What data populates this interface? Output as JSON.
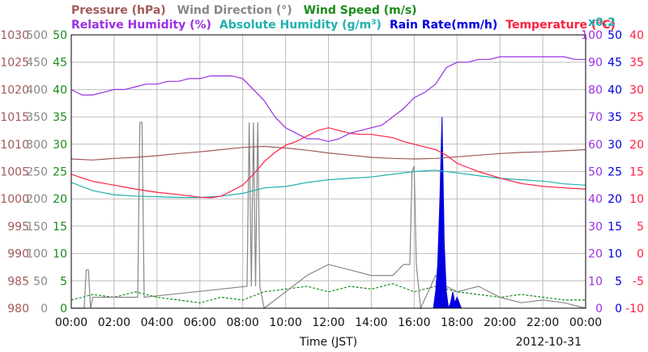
{
  "chart_data": {
    "type": "line",
    "xlabel": "Time (JST)",
    "date": "2012-10-31",
    "x_ticks": [
      "00:00",
      "02:00",
      "04:00",
      "06:00",
      "08:00",
      "10:00",
      "12:00",
      "14:00",
      "16:00",
      "18:00",
      "20:00",
      "22:00",
      "00:00"
    ],
    "x_unit": "hours",
    "xlim": [
      0,
      24
    ],
    "grid": true,
    "legend": {
      "row1": [
        {
          "label": "Pressure (hPa)",
          "color": "#a05a5a"
        },
        {
          "label": "Wind Direction (°)",
          "color": "#888888"
        },
        {
          "label": "Wind Speed (m/s)",
          "color": "#1a8a1a"
        }
      ],
      "row2": [
        {
          "label": "Relative Humidity (%)",
          "color": "#9a30e0"
        },
        {
          "label": "Absolute Humidity (g/m",
          "color": "#20b0b0",
          "superscript": "3",
          "suffix": ")"
        },
        {
          "label": "Rain Rate(mm/h)",
          "color": "#0000e0"
        },
        {
          "label": "Temperature (°C)",
          "color": "#ff2040"
        }
      ],
      "abs_humidity_scale": "x0.2"
    },
    "axes": {
      "pressure": {
        "color": "#a05a5a",
        "range": [
          980,
          1030
        ],
        "ticks": [
          "1030",
          "1025",
          "1020",
          "1015",
          "1010",
          "1005",
          "1000",
          "995",
          "990",
          "985",
          "980"
        ]
      },
      "wind_direction": {
        "color": "#888888",
        "range": [
          0,
          500
        ],
        "ticks": [
          "500",
          "450",
          "400",
          "350",
          "300",
          "250",
          "200",
          "150",
          "100",
          "50",
          "0"
        ]
      },
      "wind_speed": {
        "color": "#1a8a1a",
        "range": [
          0,
          50
        ],
        "ticks": [
          "50",
          "45",
          "40",
          "35",
          "30",
          "25",
          "20",
          "15",
          "10",
          "5",
          "0"
        ]
      },
      "humidity": {
        "color": "#9a30e0",
        "range": [
          0,
          100
        ],
        "ticks": [
          "100",
          "90",
          "80",
          "70",
          "60",
          "50",
          "40",
          "30",
          "20",
          "10",
          "0"
        ]
      },
      "rain_rate": {
        "color": "#0000e0",
        "range": [
          0,
          50
        ],
        "ticks": [
          "50",
          "45",
          "40",
          "35",
          "30",
          "25",
          "20",
          "15",
          "10",
          "5",
          "0"
        ]
      },
      "temperature": {
        "color": "#ff2040",
        "range": [
          -10,
          40
        ],
        "ticks": [
          "40",
          "35",
          "30",
          "25",
          "20",
          "15",
          "10",
          "5",
          "0",
          "-5",
          "-10"
        ]
      }
    },
    "series": [
      {
        "name": "Relative Humidity (%)",
        "axis": "humidity",
        "color": "#9a30e0",
        "x": [
          0,
          0.5,
          1,
          1.5,
          2,
          2.5,
          3,
          3.5,
          4,
          4.5,
          5,
          5.5,
          6,
          6.5,
          7,
          7.5,
          8,
          8.5,
          9,
          9.5,
          10,
          10.5,
          11,
          11.5,
          12,
          12.5,
          13,
          13.5,
          14,
          14.5,
          15,
          15.5,
          16,
          16.5,
          17,
          17.5,
          18,
          18.5,
          19,
          19.5,
          20,
          20.5,
          21,
          21.5,
          22,
          22.5,
          23,
          23.5,
          24
        ],
        "values": [
          80,
          78,
          78,
          79,
          80,
          80,
          81,
          82,
          82,
          83,
          83,
          84,
          84,
          85,
          85,
          85,
          84,
          80,
          76,
          70,
          66,
          64,
          62,
          62,
          61,
          62,
          64,
          65,
          66,
          67,
          70,
          73,
          77,
          79,
          82,
          88,
          90,
          90,
          91,
          91,
          92,
          92,
          92,
          92,
          92,
          92,
          92,
          91,
          91
        ]
      },
      {
        "name": "Pressure (hPa)",
        "axis": "pressure",
        "color": "#a05a5a",
        "x": [
          0,
          1,
          2,
          3,
          4,
          5,
          6,
          7,
          8,
          9,
          10,
          11,
          12,
          13,
          14,
          15,
          16,
          17,
          18,
          19,
          20,
          21,
          22,
          23,
          24
        ],
        "values": [
          1007.3,
          1007.1,
          1007.4,
          1007.6,
          1007.9,
          1008.3,
          1008.6,
          1009.0,
          1009.4,
          1009.6,
          1009.3,
          1008.9,
          1008.4,
          1008.0,
          1007.6,
          1007.4,
          1007.3,
          1007.4,
          1007.7,
          1008.0,
          1008.3,
          1008.5,
          1008.6,
          1008.8,
          1009.0
        ]
      },
      {
        "name": "Temperature (°C)",
        "axis": "temperature",
        "color": "#ff2040",
        "x": [
          0,
          1,
          2,
          3,
          4,
          5,
          6,
          6.5,
          7,
          7.5,
          8,
          8.5,
          9,
          9.5,
          10,
          10.5,
          11,
          11.5,
          12,
          12.5,
          13,
          13.5,
          14,
          14.5,
          15,
          15.5,
          16,
          16.5,
          17,
          17.5,
          18,
          19,
          20,
          21,
          22,
          23,
          24
        ],
        "values": [
          14.5,
          13.2,
          12.5,
          11.8,
          11.2,
          10.8,
          10.3,
          10.2,
          10.5,
          11.5,
          12.5,
          14.5,
          16.8,
          18.5,
          19.8,
          20.5,
          21.5,
          22.5,
          23.0,
          22.5,
          22.0,
          21.8,
          21.8,
          21.5,
          21.2,
          20.5,
          20.0,
          19.5,
          19.0,
          18.0,
          16.5,
          15.0,
          13.8,
          12.8,
          12.3,
          12.0,
          11.8
        ]
      },
      {
        "name": "Absolute Humidity (g/m3)",
        "axis": "humidity",
        "color": "#20b0b0",
        "x": [
          0,
          1,
          2,
          3,
          4,
          5,
          6,
          7,
          8,
          9,
          10,
          11,
          12,
          13,
          14,
          15,
          16,
          17,
          18,
          19,
          20,
          21,
          22,
          23,
          24
        ],
        "values": [
          46,
          43,
          41.5,
          41,
          40.8,
          40.5,
          40.5,
          41,
          42,
          44,
          44.5,
          46,
          47,
          47.5,
          48,
          49,
          50,
          50.5,
          49.5,
          48.5,
          47.5,
          47,
          46.5,
          45.5,
          45
        ]
      },
      {
        "name": "Wind Direction (°)",
        "axis": "wind_direction",
        "color": "#888888",
        "x": [
          0,
          0.6,
          0.7,
          0.8,
          0.9,
          1,
          3.1,
          3.2,
          3.3,
          3.4,
          8.2,
          8.3,
          8.4,
          8.5,
          8.6,
          8.7,
          8.8,
          9,
          11,
          12,
          13,
          14,
          15,
          15.5,
          15.8,
          15.9,
          16,
          16.1,
          16.3,
          17,
          17.5,
          18,
          19,
          20,
          21,
          22,
          23,
          24
        ],
        "values": [
          0,
          0,
          70,
          70,
          0,
          20,
          20,
          340,
          340,
          20,
          40,
          340,
          40,
          340,
          40,
          340,
          40,
          0,
          60,
          80,
          70,
          60,
          60,
          80,
          80,
          250,
          260,
          80,
          0,
          60,
          40,
          30,
          40,
          20,
          10,
          15,
          10,
          0
        ]
      },
      {
        "name": "Wind Speed (m/s)",
        "axis": "wind_speed",
        "color": "#1a8a1a",
        "x": [
          0,
          1,
          2,
          3,
          4,
          5,
          6,
          7,
          8,
          9,
          10,
          11,
          12,
          13,
          14,
          15,
          16,
          17,
          18,
          19,
          20,
          21,
          22,
          23,
          24
        ],
        "values": [
          1.5,
          2.5,
          2,
          3,
          2,
          1.5,
          1,
          2,
          1.5,
          3,
          3.5,
          4,
          3,
          4,
          3.5,
          4.5,
          3,
          4,
          3,
          2.5,
          2,
          2.5,
          2,
          1.5,
          1.5
        ]
      },
      {
        "name": "Rain Rate(mm/h)",
        "axis": "rain_rate",
        "color": "#0000e0",
        "x": [
          16.9,
          17.0,
          17.1,
          17.2,
          17.3,
          17.4,
          17.5,
          17.6,
          17.7,
          17.8,
          17.9,
          18.0,
          18.1,
          18.2,
          18.3
        ],
        "values": [
          0,
          3,
          8,
          20,
          35,
          12,
          3,
          0,
          1,
          3,
          1,
          2,
          1,
          0,
          0
        ]
      }
    ]
  }
}
